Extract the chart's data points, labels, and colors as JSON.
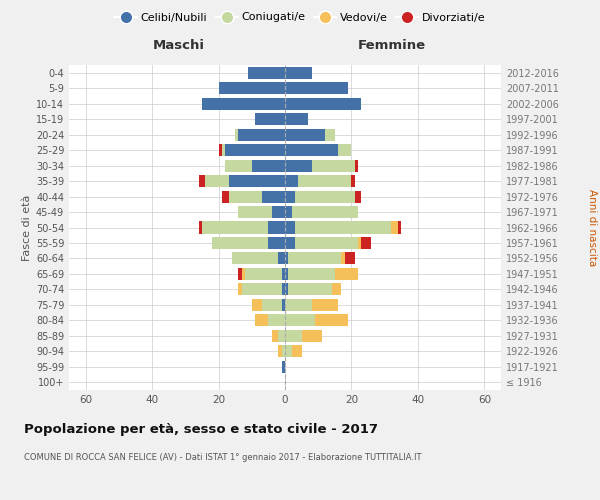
{
  "age_groups": [
    "100+",
    "95-99",
    "90-94",
    "85-89",
    "80-84",
    "75-79",
    "70-74",
    "65-69",
    "60-64",
    "55-59",
    "50-54",
    "45-49",
    "40-44",
    "35-39",
    "30-34",
    "25-29",
    "20-24",
    "15-19",
    "10-14",
    "5-9",
    "0-4"
  ],
  "birth_years": [
    "≤ 1916",
    "1917-1921",
    "1922-1926",
    "1927-1931",
    "1932-1936",
    "1937-1941",
    "1942-1946",
    "1947-1951",
    "1952-1956",
    "1957-1961",
    "1962-1966",
    "1967-1971",
    "1972-1976",
    "1977-1981",
    "1982-1986",
    "1987-1991",
    "1992-1996",
    "1997-2001",
    "2002-2006",
    "2007-2011",
    "2012-2016"
  ],
  "maschi": {
    "celibi": [
      0,
      1,
      0,
      0,
      0,
      1,
      1,
      1,
      2,
      5,
      5,
      4,
      7,
      17,
      10,
      18,
      14,
      9,
      25,
      20,
      11
    ],
    "coniugati": [
      0,
      0,
      1,
      2,
      5,
      6,
      12,
      11,
      14,
      17,
      20,
      10,
      10,
      7,
      8,
      1,
      1,
      0,
      0,
      0,
      0
    ],
    "vedovi": [
      0,
      0,
      1,
      2,
      4,
      3,
      1,
      1,
      0,
      0,
      0,
      0,
      0,
      0,
      0,
      0,
      0,
      0,
      0,
      0,
      0
    ],
    "divorziati": [
      0,
      0,
      0,
      0,
      0,
      0,
      0,
      1,
      0,
      0,
      1,
      0,
      2,
      2,
      0,
      1,
      0,
      0,
      0,
      0,
      0
    ]
  },
  "femmine": {
    "nubili": [
      0,
      0,
      0,
      0,
      0,
      0,
      1,
      1,
      1,
      3,
      3,
      2,
      3,
      4,
      8,
      16,
      12,
      7,
      23,
      19,
      8
    ],
    "coniugate": [
      0,
      0,
      2,
      5,
      9,
      8,
      13,
      14,
      16,
      19,
      29,
      20,
      18,
      16,
      13,
      4,
      3,
      0,
      0,
      0,
      0
    ],
    "vedove": [
      0,
      0,
      3,
      6,
      10,
      8,
      3,
      7,
      1,
      1,
      2,
      0,
      0,
      0,
      0,
      0,
      0,
      0,
      0,
      0,
      0
    ],
    "divorziate": [
      0,
      0,
      0,
      0,
      0,
      0,
      0,
      0,
      3,
      3,
      1,
      0,
      2,
      1,
      1,
      0,
      0,
      0,
      0,
      0,
      0
    ]
  },
  "colors": {
    "celibi": "#4472a8",
    "coniugati": "#c5d8a0",
    "vedovi": "#f5c05a",
    "divorziati": "#cc2222"
  },
  "xlim": 65,
  "title": "Popolazione per età, sesso e stato civile - 2017",
  "subtitle": "COMUNE DI ROCCA SAN FELICE (AV) - Dati ISTAT 1° gennaio 2017 - Elaborazione TUTTITALIA.IT",
  "ylabel_left": "Fasce di età",
  "ylabel_right": "Anni di nascita",
  "xlabel_left": "Maschi",
  "xlabel_right": "Femmine",
  "background_color": "#f0f0f0",
  "plot_bg": "#ffffff"
}
